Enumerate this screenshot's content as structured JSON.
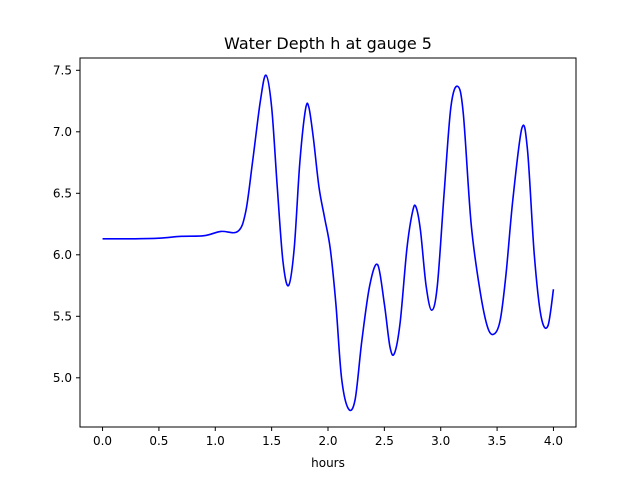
{
  "chart_data": {
    "type": "line",
    "title": "Water Depth h at gauge 5",
    "xlabel": "hours",
    "ylabel": "",
    "xlim": [
      -0.2,
      4.2
    ],
    "ylim": [
      4.6,
      7.6
    ],
    "xticks": [
      0.0,
      0.5,
      1.0,
      1.5,
      2.0,
      2.5,
      3.0,
      3.5,
      4.0
    ],
    "xtick_labels": [
      "0.0",
      "0.5",
      "1.0",
      "1.5",
      "2.0",
      "2.5",
      "3.0",
      "3.5",
      "4.0"
    ],
    "yticks": [
      5.0,
      5.5,
      6.0,
      6.5,
      7.0,
      7.5
    ],
    "ytick_labels": [
      "5.0",
      "5.5",
      "6.0",
      "6.5",
      "7.0",
      "7.5"
    ],
    "grid": false,
    "legend": "none",
    "series": [
      {
        "color": "#0000ff",
        "x": [
          0.0,
          0.25,
          0.5,
          0.7,
          0.9,
          1.05,
          1.2,
          1.27,
          1.33,
          1.4,
          1.45,
          1.5,
          1.55,
          1.6,
          1.65,
          1.7,
          1.75,
          1.8,
          1.83,
          1.87,
          1.92,
          1.97,
          2.02,
          2.07,
          2.12,
          2.18,
          2.24,
          2.3,
          2.37,
          2.44,
          2.5,
          2.55,
          2.59,
          2.64,
          2.7,
          2.75,
          2.78,
          2.82,
          2.87,
          2.92,
          2.97,
          3.03,
          3.09,
          3.15,
          3.2,
          3.27,
          3.35,
          3.42,
          3.48,
          3.53,
          3.58,
          3.64,
          3.72,
          3.77,
          3.83,
          3.89,
          3.95,
          4.0
        ],
        "y": [
          6.13,
          6.13,
          6.135,
          6.15,
          6.155,
          6.19,
          6.19,
          6.35,
          6.75,
          7.25,
          7.46,
          7.2,
          6.55,
          5.95,
          5.75,
          6.05,
          6.75,
          7.18,
          7.2,
          6.95,
          6.55,
          6.3,
          6.05,
          5.6,
          5.0,
          4.75,
          4.82,
          5.3,
          5.75,
          5.92,
          5.6,
          5.25,
          5.2,
          5.45,
          6.05,
          6.35,
          6.39,
          6.2,
          5.75,
          5.55,
          5.75,
          6.5,
          7.2,
          7.37,
          7.15,
          6.25,
          5.7,
          5.4,
          5.36,
          5.48,
          5.85,
          6.45,
          7.03,
          6.85,
          6.0,
          5.5,
          5.42,
          5.72
        ]
      }
    ]
  }
}
